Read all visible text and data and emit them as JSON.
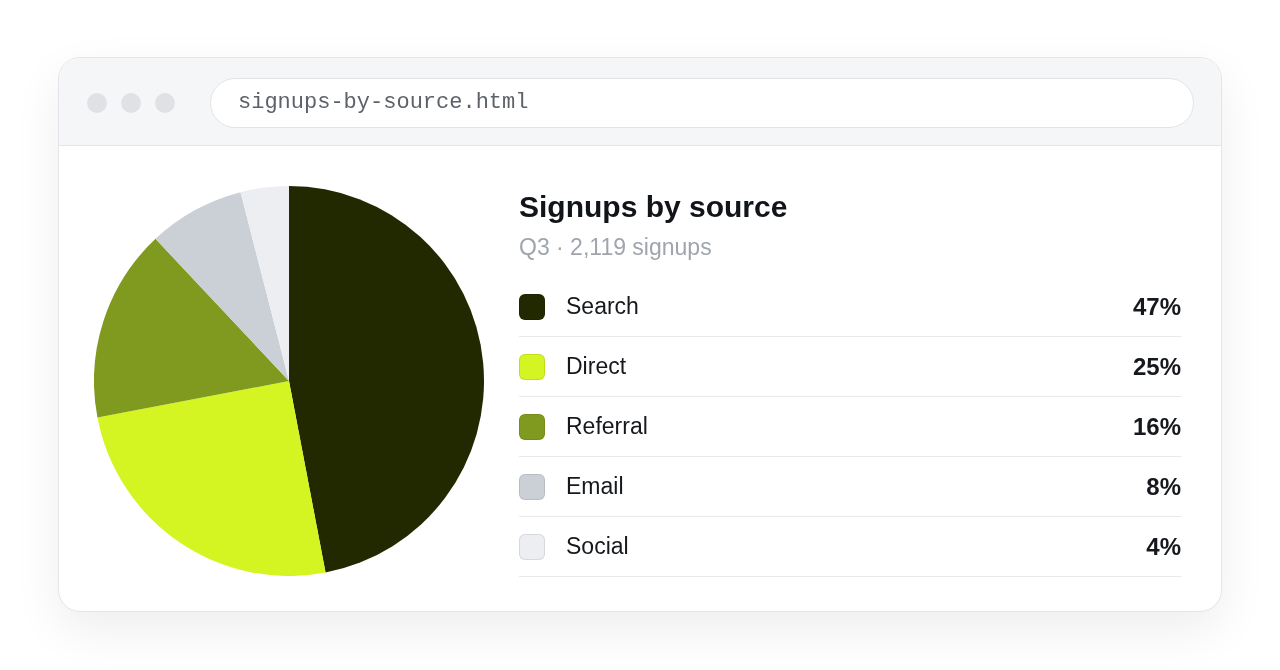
{
  "chart_data": {
    "type": "pie",
    "title": "Signups by source",
    "subtitle": "Q3 · 2,119 signups",
    "categories": [
      "Search",
      "Direct",
      "Referral",
      "Email",
      "Social"
    ],
    "values": [
      47,
      25,
      16,
      8,
      4
    ],
    "colors": [
      "#222800",
      "#d4f522",
      "#7f9a1f",
      "#cbd0d6",
      "#eceef2"
    ],
    "value_labels": [
      "47%",
      "25%",
      "16%",
      "8%",
      "4%"
    ],
    "legend": "right",
    "annotations": [
      "signups-by-source.html"
    ]
  }
}
